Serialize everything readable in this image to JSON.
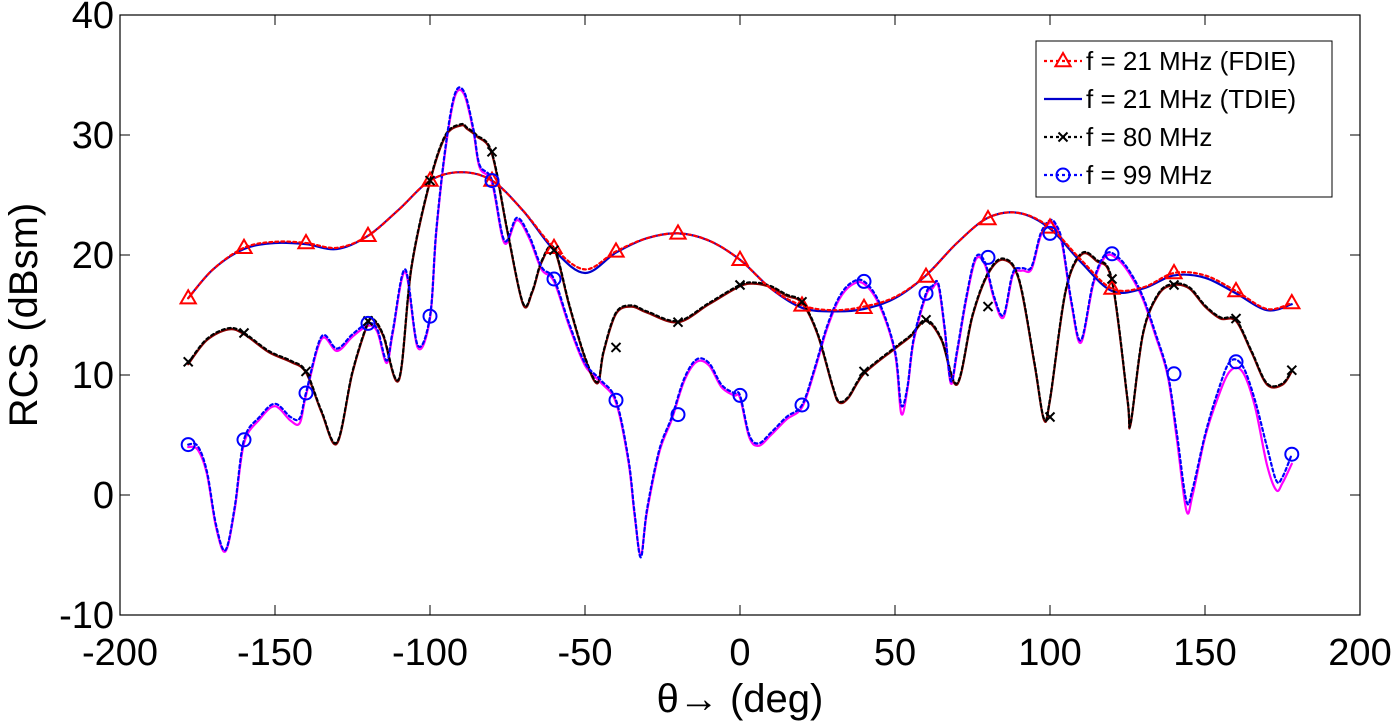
{
  "chart_data": {
    "type": "line",
    "title": "",
    "xlabel": "θ→ (deg)",
    "ylabel": "RCS (dBsm)",
    "xlim": [
      -200,
      200
    ],
    "ylim": [
      -10,
      40
    ],
    "xticks": [
      -200,
      -150,
      -100,
      -50,
      0,
      50,
      100,
      150,
      200
    ],
    "xtick_labels": [
      "-200",
      "-150",
      "-100",
      "-50",
      "0",
      "50",
      "100",
      "150",
      "200"
    ],
    "yticks": [
      -10,
      0,
      10,
      20,
      30,
      40
    ],
    "ytick_labels": [
      "-10",
      "0",
      "10",
      "20",
      "30",
      "40"
    ],
    "grid": false,
    "legend_position": "top-right",
    "series": [
      {
        "name": "f = 21 MHz (FDIE)",
        "color": "#ff0000",
        "dash": "dotted",
        "marker": "triangle",
        "x": [
          -178,
          -170,
          -160,
          -150,
          -140,
          -130,
          -120,
          -110,
          -100,
          -90,
          -80,
          -70,
          -60,
          -50,
          -40,
          -30,
          -20,
          -10,
          0,
          10,
          20,
          30,
          40,
          50,
          60,
          70,
          80,
          90,
          100,
          110,
          120,
          130,
          140,
          150,
          160,
          170,
          178
        ],
        "y": [
          16.4,
          18.8,
          20.6,
          21.1,
          21.0,
          20.6,
          21.6,
          23.8,
          26.2,
          26.9,
          26.2,
          23.7,
          20.6,
          18.8,
          20.3,
          21.4,
          21.8,
          21.2,
          19.6,
          17.2,
          15.8,
          15.4,
          15.7,
          16.5,
          18.3,
          21.0,
          23.1,
          23.5,
          22.3,
          19.6,
          17.2,
          17.3,
          18.5,
          18.3,
          17.0,
          15.5,
          16.0
        ],
        "marker_x": [
          -178,
          -160,
          -140,
          -120,
          -100,
          -80,
          -60,
          -40,
          -20,
          0,
          20,
          40,
          60,
          80,
          100,
          120,
          140,
          160,
          178
        ],
        "marker_y": [
          16.4,
          20.6,
          21.0,
          21.6,
          26.2,
          26.2,
          20.6,
          20.3,
          21.8,
          19.6,
          15.8,
          15.6,
          18.2,
          23.0,
          22.3,
          17.2,
          18.5,
          17.0,
          16.0
        ]
      },
      {
        "name": "f = 21 MHz (TDIE)",
        "color": "#0000cc",
        "dash": "solid",
        "marker": "none",
        "x": [
          -178,
          -170,
          -160,
          -150,
          -140,
          -130,
          -120,
          -110,
          -100,
          -90,
          -80,
          -70,
          -60,
          -50,
          -40,
          -30,
          -20,
          -10,
          0,
          10,
          20,
          30,
          40,
          50,
          60,
          70,
          80,
          90,
          100,
          110,
          120,
          130,
          140,
          150,
          160,
          170,
          178
        ],
        "y": [
          16.4,
          18.8,
          20.5,
          21.0,
          20.9,
          20.5,
          21.6,
          23.8,
          26.2,
          26.9,
          26.2,
          23.7,
          20.4,
          18.5,
          20.2,
          21.4,
          21.8,
          21.2,
          19.6,
          17.2,
          15.6,
          15.3,
          15.5,
          16.4,
          18.3,
          21.0,
          23.1,
          23.5,
          22.2,
          19.4,
          17.0,
          17.2,
          18.3,
          18.1,
          16.8,
          15.4,
          15.9
        ]
      },
      {
        "name": "f = 80 MHz",
        "color": "#000000",
        "dash": "dotted",
        "marker": "x",
        "x": [
          -178,
          -172,
          -165,
          -160,
          -152,
          -145,
          -140,
          -135,
          -130,
          -125,
          -120,
          -118,
          -115,
          -110,
          -106,
          -100,
          -95,
          -90,
          -88,
          -85,
          -80,
          -75,
          -70,
          -67,
          -64,
          -60,
          -55,
          -50,
          -46,
          -44,
          -40,
          -35,
          -30,
          -20,
          -10,
          0,
          5,
          10,
          15,
          20,
          25,
          30,
          32,
          35,
          40,
          50,
          55,
          60,
          65,
          70,
          75,
          80,
          85,
          90,
          95,
          98,
          100,
          105,
          110,
          115,
          120,
          125,
          126,
          130,
          135,
          140,
          145,
          150,
          155,
          160,
          165,
          170,
          175,
          178
        ],
        "y": [
          11.0,
          13.0,
          13.9,
          13.5,
          12.0,
          11.2,
          10.3,
          7.0,
          4.4,
          10.3,
          14.4,
          14.6,
          13.3,
          9.7,
          19.0,
          26.2,
          30.0,
          30.9,
          30.6,
          30.0,
          28.5,
          22.0,
          16.0,
          17.0,
          19.5,
          20.6,
          15.8,
          11.5,
          9.4,
          12.0,
          15.2,
          15.8,
          15.3,
          14.5,
          16.0,
          17.5,
          17.7,
          17.4,
          16.7,
          16.1,
          13.5,
          9.0,
          7.8,
          8.2,
          10.2,
          12.3,
          13.3,
          14.6,
          13.0,
          9.3,
          15.0,
          18.5,
          19.7,
          18.0,
          11.0,
          6.4,
          8.0,
          17.0,
          20.1,
          19.6,
          17.9,
          8.0,
          6.0,
          13.5,
          16.8,
          17.6,
          17.3,
          15.8,
          14.8,
          14.6,
          12.0,
          9.3,
          9.3,
          10.4
        ],
        "marker_x": [
          -178,
          -160,
          -140,
          -120,
          -100,
          -80,
          -60,
          -40,
          -20,
          0,
          20,
          40,
          60,
          80,
          100,
          120,
          140,
          160,
          178
        ],
        "marker_y": [
          11.1,
          13.5,
          10.3,
          14.5,
          26.2,
          28.6,
          20.4,
          12.3,
          14.4,
          17.5,
          16.1,
          10.3,
          14.6,
          15.7,
          6.5,
          18.0,
          17.5,
          14.7,
          10.4
        ]
      },
      {
        "name": "f = 99 MHz",
        "color": "#0000ff",
        "dash": "dotted",
        "marker": "circle",
        "x": [
          -178,
          -175,
          -172,
          -169,
          -166,
          -163,
          -160,
          -155,
          -150,
          -145,
          -142,
          -140,
          -135,
          -130,
          -125,
          -120,
          -117,
          -114,
          -112,
          -108,
          -104,
          -100,
          -98,
          -95,
          -92,
          -89,
          -86,
          -84,
          -80,
          -76,
          -72,
          -68,
          -64,
          -60,
          -55,
          -50,
          -45,
          -40,
          -36,
          -34,
          -32,
          -30,
          -26,
          -22,
          -18,
          -14,
          -10,
          -6,
          -2,
          0,
          3,
          6,
          10,
          15,
          20,
          24,
          28,
          32,
          36,
          40,
          45,
          50,
          52,
          54,
          56,
          60,
          62,
          64,
          66,
          68,
          70,
          73,
          76,
          79,
          82,
          85,
          88,
          91,
          94,
          97,
          100,
          102,
          104,
          107,
          110,
          114,
          118,
          122,
          126,
          130,
          134,
          138,
          141,
          144,
          146,
          150,
          154,
          158,
          162,
          166,
          170,
          173,
          175,
          178
        ],
        "y": [
          4.2,
          4.1,
          2.0,
          -2.5,
          -4.6,
          -1.0,
          4.6,
          6.5,
          7.6,
          6.5,
          6.4,
          8.5,
          13.2,
          12.2,
          13.4,
          14.3,
          13.8,
          11.2,
          13.7,
          18.8,
          12.5,
          14.9,
          22.0,
          29.0,
          33.4,
          33.6,
          30.5,
          27.5,
          26.2,
          21.2,
          23.1,
          21.6,
          19.0,
          18.0,
          14.2,
          11.0,
          9.6,
          7.9,
          3.0,
          -1.5,
          -5.2,
          -1.2,
          3.8,
          6.5,
          9.7,
          11.3,
          11.0,
          9.2,
          8.5,
          8.3,
          5.0,
          4.3,
          5.2,
          6.5,
          7.5,
          10.5,
          14.0,
          16.5,
          17.7,
          17.8,
          16.0,
          12.0,
          7.5,
          9.0,
          13.0,
          16.8,
          17.4,
          17.6,
          14.0,
          9.5,
          12.0,
          16.5,
          19.8,
          19.4,
          16.5,
          15.0,
          18.5,
          18.9,
          19.0,
          21.8,
          22.9,
          22.5,
          21.0,
          16.0,
          12.9,
          17.8,
          20.1,
          19.8,
          18.5,
          16.5,
          13.5,
          10.1,
          5.0,
          -0.5,
          0.5,
          5.0,
          8.5,
          11.1,
          10.8,
          8.0,
          4.0,
          1.2,
          1.5,
          3.4
        ],
        "marker_x": [
          -178,
          -160,
          -140,
          -120,
          -100,
          -80,
          -60,
          -40,
          -20,
          0,
          20,
          40,
          60,
          80,
          100,
          120,
          140,
          160,
          178
        ],
        "marker_y": [
          4.2,
          4.6,
          8.5,
          14.3,
          14.9,
          26.2,
          18.0,
          7.9,
          6.7,
          8.3,
          7.5,
          17.8,
          16.8,
          19.8,
          21.8,
          20.1,
          10.1,
          11.1,
          3.4
        ]
      },
      {
        "name": "",
        "color": "#ff00ff",
        "dash": "solid",
        "marker": "none",
        "x": [
          -178,
          -175,
          -172,
          -169,
          -166,
          -163,
          -160,
          -155,
          -150,
          -145,
          -142,
          -140,
          -135,
          -130,
          -125,
          -120,
          -117,
          -114,
          -112,
          -108,
          -104,
          -100,
          -98,
          -95,
          -92,
          -89,
          -86,
          -84,
          -80,
          -76,
          -72,
          -68,
          -64,
          -60,
          -55,
          -50,
          -45,
          -40,
          -36,
          -34,
          -32,
          -30,
          -26,
          -22,
          -18,
          -14,
          -10,
          -6,
          -2,
          0,
          3,
          6,
          10,
          15,
          20,
          24,
          28,
          32,
          36,
          40,
          45,
          50,
          52,
          54,
          56,
          60,
          62,
          64,
          66,
          68,
          70,
          73,
          76,
          79,
          82,
          85,
          88,
          91,
          94,
          97,
          100,
          102,
          104,
          107,
          110,
          114,
          118,
          122,
          126,
          130,
          134,
          138,
          141,
          144,
          146,
          150,
          154,
          158,
          162,
          166,
          170,
          173,
          175,
          178
        ],
        "y": [
          4.0,
          3.8,
          1.8,
          -2.7,
          -4.7,
          -1.2,
          4.3,
          6.3,
          7.4,
          6.2,
          6.0,
          8.3,
          13.0,
          12.0,
          13.2,
          14.1,
          13.6,
          11.0,
          13.5,
          18.6,
          12.3,
          14.7,
          21.8,
          28.8,
          33.2,
          33.4,
          30.3,
          27.3,
          26.0,
          21.0,
          22.9,
          21.4,
          18.8,
          17.8,
          14.0,
          10.8,
          9.4,
          7.7,
          2.8,
          -1.7,
          -5.0,
          -1.4,
          3.6,
          6.3,
          9.5,
          11.1,
          10.8,
          9.0,
          8.3,
          8.1,
          4.8,
          4.1,
          5.0,
          6.3,
          7.3,
          10.3,
          13.8,
          16.3,
          17.5,
          17.6,
          15.8,
          11.8,
          6.8,
          8.8,
          12.8,
          16.6,
          17.2,
          17.4,
          13.8,
          9.3,
          11.8,
          16.3,
          19.6,
          19.2,
          16.3,
          14.8,
          18.3,
          18.7,
          18.8,
          21.6,
          22.7,
          22.3,
          20.8,
          15.8,
          12.7,
          17.6,
          19.9,
          19.6,
          18.3,
          16.3,
          13.3,
          9.9,
          4.5,
          -1.3,
          0.0,
          4.8,
          8.0,
          10.3,
          10.3,
          7.5,
          2.5,
          0.4,
          1.0,
          2.6
        ]
      },
      {
        "name": "",
        "color": "#8b0000",
        "dash": "solid",
        "marker": "none",
        "x": [
          -178,
          -172,
          -165,
          -160,
          -152,
          -145,
          -140,
          -135,
          -130,
          -125,
          -120,
          -118,
          -115,
          -110,
          -106,
          -100,
          -95,
          -90,
          -88,
          -85,
          -80,
          -75,
          -70,
          -67,
          -64,
          -60,
          -55,
          -50,
          -46,
          -44,
          -40,
          -35,
          -30,
          -20,
          -10,
          0,
          5,
          10,
          15,
          20,
          25,
          30,
          32,
          35,
          40,
          50,
          55,
          60,
          65,
          70,
          75,
          80,
          85,
          90,
          95,
          98,
          100,
          105,
          110,
          115,
          120,
          125,
          126,
          130,
          135,
          140,
          145,
          150,
          155,
          160,
          165,
          170,
          175,
          178
        ],
        "y": [
          10.9,
          12.9,
          13.8,
          13.4,
          11.9,
          11.1,
          10.2,
          6.9,
          4.3,
          10.2,
          14.3,
          14.5,
          13.2,
          9.6,
          18.9,
          26.1,
          29.9,
          30.8,
          30.5,
          29.9,
          28.4,
          21.9,
          15.9,
          16.9,
          19.4,
          20.5,
          15.7,
          11.4,
          9.3,
          11.9,
          15.1,
          15.7,
          15.2,
          14.4,
          15.9,
          17.4,
          17.6,
          17.3,
          16.6,
          16.0,
          13.4,
          8.9,
          7.7,
          8.1,
          10.1,
          12.2,
          13.2,
          14.5,
          12.9,
          9.2,
          14.9,
          18.4,
          19.6,
          17.9,
          10.9,
          6.3,
          7.9,
          16.9,
          20.0,
          19.5,
          17.8,
          7.9,
          5.9,
          13.4,
          16.7,
          17.5,
          17.2,
          15.7,
          14.7,
          14.5,
          11.9,
          9.2,
          9.2,
          10.3
        ]
      }
    ]
  }
}
